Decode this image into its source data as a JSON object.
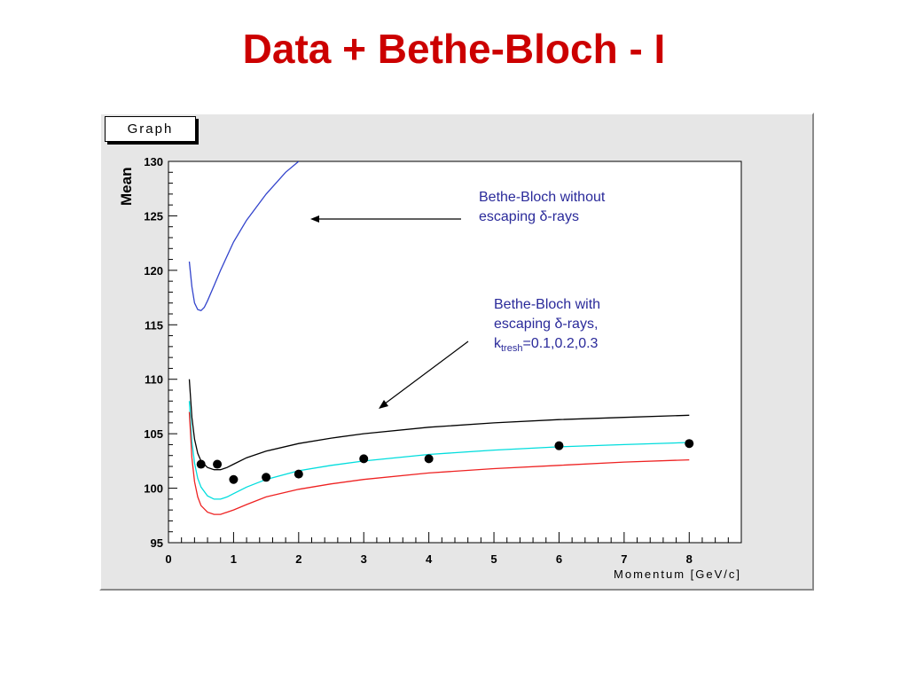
{
  "slide": {
    "title": "Data + Bethe-Bloch - I"
  },
  "panel": {
    "label": "Graph"
  },
  "annotations": {
    "no_escape": {
      "line1": "Bethe-Bloch without",
      "line2": "escaping δ-rays"
    },
    "with_escape": {
      "line1": "Bethe-Bloch with",
      "line2": "escaping δ-rays,",
      "k": "k",
      "sub": "tresh",
      "rest": "=0.1,0.2,0.3"
    }
  },
  "chart_data": {
    "type": "scatter",
    "xlabel": "Momentum  [GeV/c]",
    "ylabel": "Mean",
    "xlim": [
      0,
      8.8
    ],
    "ylim": [
      95,
      130
    ],
    "xticks": [
      0,
      1,
      2,
      3,
      4,
      5,
      6,
      7,
      8
    ],
    "yticks": [
      95,
      100,
      105,
      110,
      115,
      120,
      125,
      130
    ],
    "grid": false,
    "points": {
      "x": [
        0.5,
        0.75,
        1.0,
        1.5,
        2.0,
        3.0,
        4.0,
        6.0,
        8.0
      ],
      "y": [
        102.2,
        102.2,
        100.8,
        101.0,
        101.3,
        102.7,
        102.7,
        103.9,
        104.1
      ]
    },
    "series": [
      {
        "color": "#3344cc",
        "x": [
          0.32,
          0.36,
          0.4,
          0.45,
          0.5,
          0.55,
          0.6,
          0.7,
          0.8,
          1.0,
          1.2,
          1.5,
          1.8,
          2.0
        ],
        "y": [
          120.8,
          118.5,
          117.0,
          116.4,
          116.3,
          116.6,
          117.2,
          118.6,
          120.0,
          122.6,
          124.6,
          127.0,
          129.0,
          130.0
        ]
      },
      {
        "color": "#000000",
        "x": [
          0.32,
          0.36,
          0.4,
          0.45,
          0.5,
          0.6,
          0.7,
          0.8,
          0.9,
          1.0,
          1.2,
          1.5,
          2.0,
          2.5,
          3.0,
          4.0,
          5.0,
          6.0,
          7.0,
          8.0
        ],
        "y": [
          110.0,
          106.5,
          104.5,
          103.2,
          102.5,
          101.9,
          101.7,
          101.7,
          101.9,
          102.2,
          102.8,
          103.4,
          104.1,
          104.6,
          105.0,
          105.6,
          106.0,
          106.3,
          106.5,
          106.7
        ]
      },
      {
        "color": "#00dddd",
        "x": [
          0.32,
          0.36,
          0.4,
          0.45,
          0.5,
          0.6,
          0.7,
          0.8,
          0.9,
          1.0,
          1.2,
          1.5,
          2.0,
          2.5,
          3.0,
          4.0,
          5.0,
          6.0,
          7.0,
          8.0
        ],
        "y": [
          108.0,
          104.3,
          102.3,
          100.9,
          100.1,
          99.3,
          99.0,
          99.0,
          99.2,
          99.5,
          100.1,
          100.8,
          101.6,
          102.1,
          102.5,
          103.1,
          103.5,
          103.8,
          104.0,
          104.2
        ]
      },
      {
        "color": "#ee2222",
        "x": [
          0.32,
          0.36,
          0.4,
          0.45,
          0.5,
          0.6,
          0.7,
          0.8,
          0.9,
          1.0,
          1.2,
          1.5,
          2.0,
          2.5,
          3.0,
          4.0,
          5.0,
          6.0,
          7.0,
          8.0
        ],
        "y": [
          107.0,
          102.8,
          100.6,
          99.2,
          98.4,
          97.8,
          97.6,
          97.6,
          97.8,
          98.0,
          98.5,
          99.2,
          99.9,
          100.4,
          100.8,
          101.4,
          101.8,
          102.1,
          102.4,
          102.6
        ]
      }
    ]
  }
}
